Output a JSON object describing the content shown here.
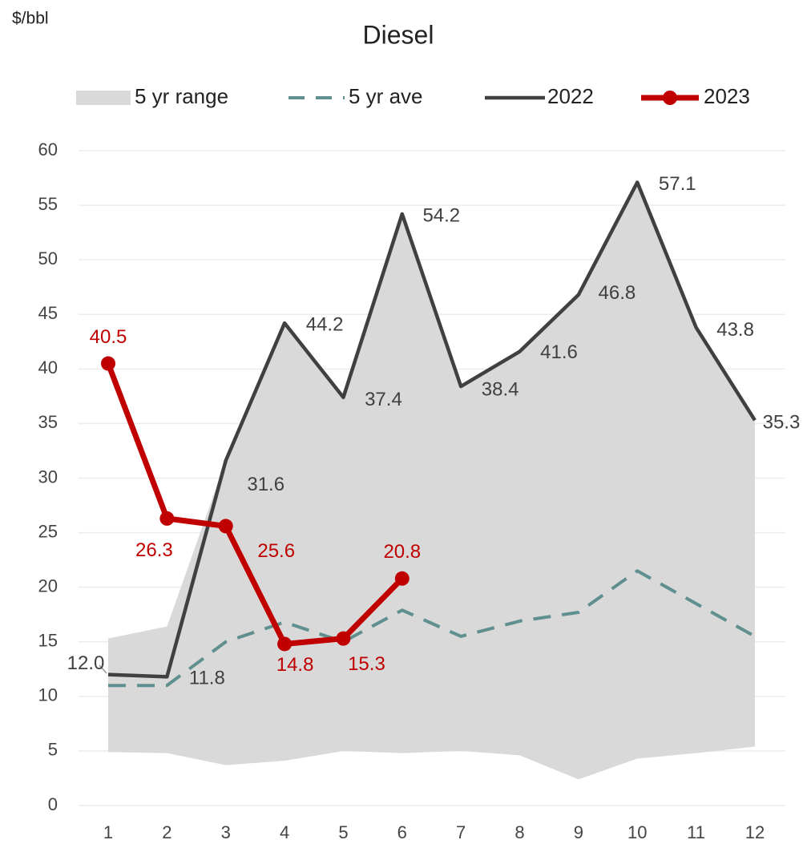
{
  "chart_data": {
    "type": "line",
    "title": "Diesel",
    "y_label": "$/bbl",
    "categories": [
      "1",
      "2",
      "3",
      "4",
      "5",
      "6",
      "7",
      "8",
      "9",
      "10",
      "11",
      "12"
    ],
    "ylim": [
      0,
      60
    ],
    "yticks": [
      0,
      5,
      10,
      15,
      20,
      25,
      30,
      35,
      40,
      45,
      50,
      55,
      60
    ],
    "grid": true,
    "legend": "top",
    "series": [
      {
        "name": "5 yr range",
        "kind": "range",
        "color": "#d9d9d9",
        "low": [
          4.9,
          4.8,
          3.7,
          4.1,
          5.0,
          4.8,
          5.0,
          4.6,
          2.4,
          4.3,
          4.8,
          5.4
        ],
        "high": [
          15.3,
          16.4,
          31.6,
          44.2,
          37.4,
          54.2,
          38.4,
          41.6,
          46.8,
          57.1,
          43.8,
          35.3
        ]
      },
      {
        "name": "5 yr ave",
        "kind": "dashed",
        "color": "#5f8f8f",
        "values": [
          11.0,
          11.0,
          15.0,
          16.8,
          15.0,
          17.9,
          15.5,
          16.9,
          17.7,
          21.5,
          18.5,
          15.5
        ]
      },
      {
        "name": "2022",
        "kind": "line",
        "color": "#404040",
        "values": [
          12.0,
          11.8,
          31.6,
          44.2,
          37.4,
          54.2,
          38.4,
          41.6,
          46.8,
          57.1,
          43.8,
          35.3
        ],
        "value_labels": [
          "12.0",
          "11.8",
          "31.6",
          "44.2",
          "37.4",
          "54.2",
          "38.4",
          "41.6",
          "46.8",
          "57.1",
          "43.8",
          "35.3"
        ]
      },
      {
        "name": "2023",
        "kind": "markers",
        "color": "#c00000",
        "values": [
          40.5,
          26.3,
          25.6,
          14.8,
          15.3,
          20.8,
          null,
          null,
          null,
          null,
          null,
          null
        ],
        "value_labels": [
          "40.5",
          "26.3",
          "25.6",
          "14.8",
          "15.3",
          "20.8",
          null,
          null,
          null,
          null,
          null,
          null
        ]
      }
    ]
  }
}
